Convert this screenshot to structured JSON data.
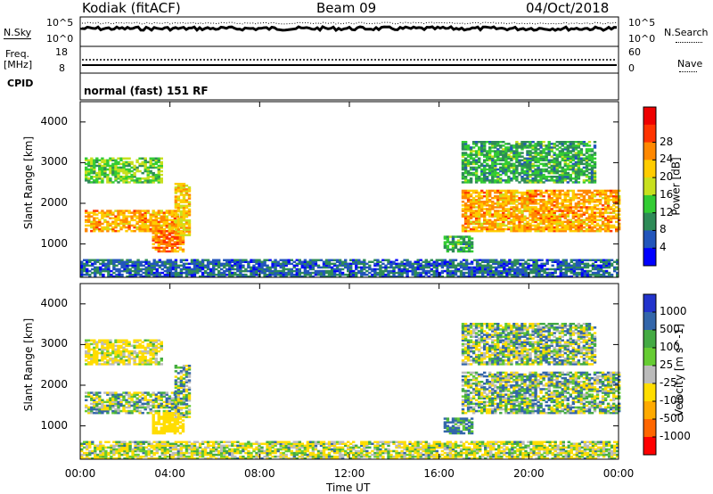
{
  "header": {
    "station": "Kodiak (fitACF)",
    "beam": "Beam 09",
    "date": "04/Oct/2018"
  },
  "strip": {
    "nsky_label": "N.Sky",
    "nsky_top": "10^5",
    "nsky_bottom": "10^0",
    "nsearch_label": "N.Search",
    "nsearch_top": "10^5",
    "nsearch_bottom": "10^0",
    "freq_label_1": "Freq.",
    "freq_label_2": "[MHz]",
    "freq_top": "18",
    "freq_bottom": "8",
    "nave_label": "Nave",
    "nave_top": "60",
    "nave_bottom": "0",
    "cpid_label": "CPID",
    "cpid_value": "normal (fast) 151 RF"
  },
  "axes": {
    "x_ticks": [
      "00:00",
      "04:00",
      "08:00",
      "12:00",
      "16:00",
      "20:00",
      "00:00"
    ],
    "x_label": "Time UT",
    "y_label": "Slant Range [km]",
    "y_ticks": [
      "1000",
      "2000",
      "3000",
      "4000"
    ]
  },
  "colors": {
    "power": [
      "#0000ff",
      "#2255bb",
      "#2e8b57",
      "#33cc33",
      "#c8e01e",
      "#ffcc00",
      "#ff8800",
      "#ff3300",
      "#ee0000"
    ],
    "velocity": [
      "#2233cc",
      "#3366aa",
      "#44aa44",
      "#66cc33",
      "#bbbbbb",
      "#ffdd00",
      "#ffaa00",
      "#ff6600",
      "#ff0000"
    ]
  },
  "chart_data": [
    {
      "type": "heatmap",
      "name": "power",
      "x_range": [
        "00:00",
        "00:00"
      ],
      "ylim": [
        180,
        4500
      ],
      "colorbar": {
        "label": "Power [dB]",
        "ticks": [
          "4",
          "8",
          "12",
          "16",
          "20",
          "24",
          "28"
        ],
        "range": [
          0,
          30
        ]
      },
      "regions": [
        {
          "t0": 0.2,
          "t1": 4.3,
          "r0": 1300,
          "r1": 1800,
          "value": 20
        },
        {
          "t0": 0.2,
          "t1": 3.6,
          "r0": 2500,
          "r1": 3100,
          "value": 12
        },
        {
          "t0": 3.2,
          "t1": 4.6,
          "r0": 800,
          "r1": 1300,
          "value": 22
        },
        {
          "t0": 4.2,
          "t1": 4.9,
          "r0": 1200,
          "r1": 2500,
          "value": 18
        },
        {
          "t0": 0.0,
          "t1": 24.0,
          "r0": 180,
          "r1": 600,
          "value": 6
        },
        {
          "t0": 16.2,
          "t1": 17.5,
          "r0": 800,
          "r1": 1200,
          "value": 10
        },
        {
          "t0": 17.0,
          "t1": 24.0,
          "r0": 1300,
          "r1": 2300,
          "value": 20
        },
        {
          "t0": 17.0,
          "t1": 23.0,
          "r0": 2500,
          "r1": 3500,
          "value": 10
        }
      ]
    },
    {
      "type": "heatmap",
      "name": "velocity",
      "x_range": [
        "00:00",
        "00:00"
      ],
      "ylim": [
        180,
        4500
      ],
      "colorbar": {
        "label": "Velocity [m s^-1]",
        "ticks": [
          "1000",
          "500",
          "100",
          "25",
          "-25",
          "-100",
          "-500",
          "-1000"
        ],
        "range": [
          -1000,
          1000
        ]
      },
      "regions": [
        {
          "t0": 0.2,
          "t1": 4.3,
          "r0": 1300,
          "r1": 1800,
          "value": 0
        },
        {
          "t0": 0.2,
          "t1": 3.6,
          "r0": 2500,
          "r1": 3100,
          "value": -150
        },
        {
          "t0": 3.2,
          "t1": 4.6,
          "r0": 800,
          "r1": 1300,
          "value": -300
        },
        {
          "t0": 4.2,
          "t1": 4.9,
          "r0": 1200,
          "r1": 2500,
          "value": 0
        },
        {
          "t0": 0.0,
          "t1": 24.0,
          "r0": 180,
          "r1": 600,
          "value": -80
        },
        {
          "t0": 16.2,
          "t1": 17.5,
          "r0": 800,
          "r1": 1200,
          "value": 150
        },
        {
          "t0": 17.0,
          "t1": 24.0,
          "r0": 1300,
          "r1": 2300,
          "value": 0
        },
        {
          "t0": 17.0,
          "t1": 23.0,
          "r0": 2500,
          "r1": 3500,
          "value": 0
        }
      ]
    }
  ]
}
